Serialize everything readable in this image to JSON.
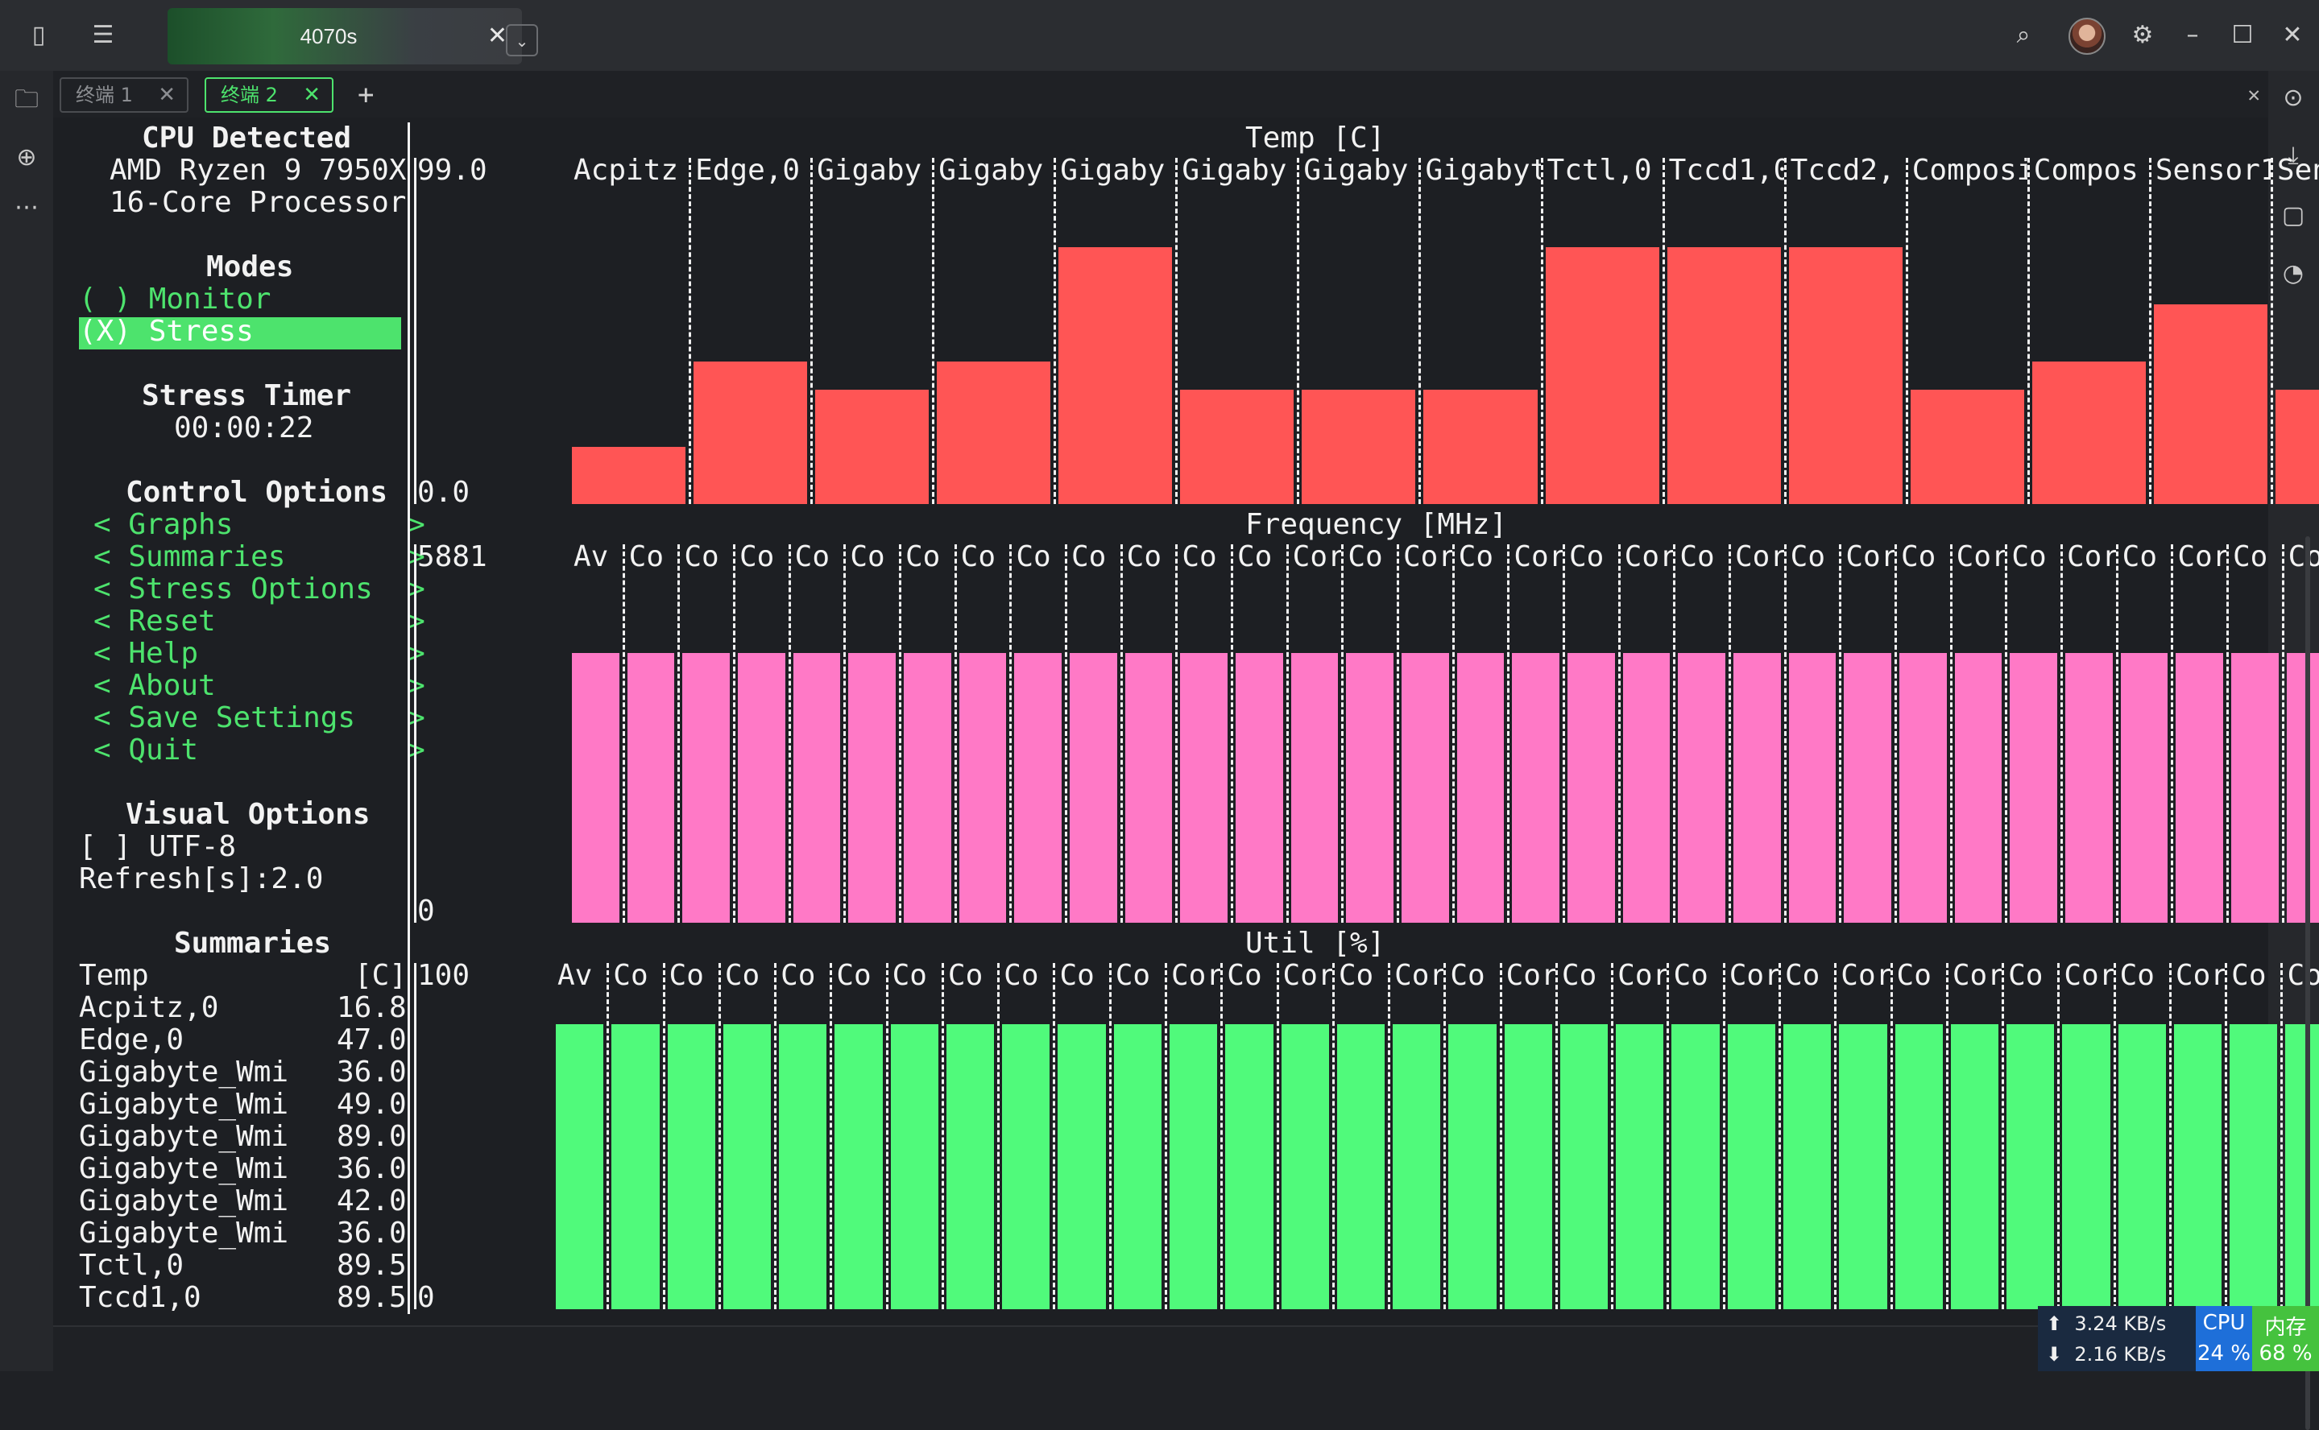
{
  "window": {
    "tab_title": "4070s",
    "tab_close": "✕",
    "dropdown": "⌄"
  },
  "terminal_tabs": [
    {
      "label": "终端 1",
      "close": "✕"
    },
    {
      "label": "终端 2",
      "close": "✕"
    }
  ],
  "add_tab": "+",
  "close_pane": "✕",
  "sidebar": {
    "cpu_title": "CPU Detected",
    "cpu_name1": "AMD Ryzen 9 7950X",
    "cpu_name2": "16-Core Processor",
    "modes_title": "Modes",
    "mode_monitor": "( ) Monitor",
    "mode_stress": "(X) Stress",
    "timer_title": "Stress Timer",
    "timer_value": "00:00:22",
    "control_title": "Control Options",
    "controls": [
      "< Graphs          >",
      "< Summaries       >",
      "< Stress Options  >",
      "< Reset           >",
      "< Help            >",
      "< About           >",
      "< Save Settings   >",
      "< Quit            >"
    ],
    "visual_title": "Visual Options",
    "utf8": "[ ] UTF-8",
    "refresh": "Refresh[s]:2.0",
    "summaries_title": "Summaries",
    "summary_header_name": "Temp",
    "summary_header_unit": "[C]",
    "summary_rows": [
      {
        "name": "Acpitz,0",
        "value": "16.8"
      },
      {
        "name": "Edge,0",
        "value": "47.0"
      },
      {
        "name": "Gigabyte_Wmi",
        "value": "36.0"
      },
      {
        "name": "Gigabyte_Wmi",
        "value": "49.0"
      },
      {
        "name": "Gigabyte_Wmi",
        "value": "89.0"
      },
      {
        "name": "Gigabyte_Wmi",
        "value": "36.0"
      },
      {
        "name": "Gigabyte_Wmi",
        "value": "42.0"
      },
      {
        "name": "Gigabyte_Wmi",
        "value": "36.0"
      },
      {
        "name": "Tctl,0",
        "value": "89.5"
      },
      {
        "name": "Tccd1,0",
        "value": "89.5"
      }
    ]
  },
  "chart_data": [
    {
      "type": "bar",
      "title": "Temp [C]",
      "ymax_label": "99.0",
      "ymin_label": "0.0",
      "categories": [
        "Acpitz",
        "Edge,0",
        "Gigaby",
        "Gigaby",
        "Gigaby",
        "Gigaby",
        "Gigaby",
        "Gigabyt",
        "Tctl,0",
        "Tccd1,0",
        "Tccd2,",
        "Composi",
        "Compos",
        "Sensor1",
        "Sensor"
      ],
      "values": [
        19.8,
        49.5,
        39.6,
        49.5,
        89.1,
        39.6,
        39.6,
        39.6,
        89.1,
        89.1,
        89.1,
        39.6,
        49.5,
        69.3,
        39.6
      ],
      "ylim": [
        0,
        99
      ]
    },
    {
      "type": "bar",
      "title": "Frequency [MHz]",
      "ymax_label": "5881",
      "ymin_label": "0",
      "categories": [
        "Av",
        "Co",
        "Co",
        "Co",
        "Co",
        "Co",
        "Co",
        "Co",
        "Co",
        "Co",
        "Co",
        "Co",
        "Co",
        "Cor",
        "Co",
        "Cor",
        "Co",
        "Cor",
        "Co",
        "Cor",
        "Co",
        "Cor",
        "Co",
        "Cor",
        "Co",
        "Cor",
        "Co",
        "Cor",
        "Co",
        "Cor",
        "Co",
        "Cor",
        "Co"
      ],
      "values": [
        5000,
        5000,
        5000,
        5000,
        5000,
        5000,
        5000,
        5000,
        5000,
        5000,
        5000,
        5000,
        5000,
        5000,
        5000,
        5000,
        5000,
        5000,
        5000,
        5000,
        5000,
        5000,
        5000,
        5000,
        5000,
        5000,
        5000,
        5000,
        5000,
        5000,
        5000,
        5000,
        5000
      ],
      "ylim": [
        0,
        5881
      ]
    },
    {
      "type": "bar",
      "title": "Util [%]",
      "ymax_label": "100",
      "ymin_label": "0",
      "categories": [
        "Av",
        "Co",
        "Co",
        "Co",
        "Co",
        "Co",
        "Co",
        "Co",
        "Co",
        "Co",
        "Co",
        "Cor",
        "Co",
        "Cor",
        "Co",
        "Cor",
        "Co",
        "Cor",
        "Co",
        "Cor",
        "Co",
        "Cor",
        "Co",
        "Cor",
        "Co",
        "Cor",
        "Co",
        "Cor",
        "Co",
        "Cor",
        "Co",
        "Cor",
        "Co"
      ],
      "values": [
        100,
        100,
        100,
        100,
        100,
        100,
        100,
        100,
        100,
        100,
        100,
        100,
        100,
        100,
        100,
        100,
        100,
        100,
        100,
        100,
        100,
        100,
        100,
        100,
        100,
        100,
        100,
        100,
        100,
        100,
        100,
        100,
        100
      ],
      "ylim": [
        0,
        100
      ]
    }
  ],
  "status": {
    "up": "⬆  3.24 KB/s",
    "down": "⬇  2.16 KB/s",
    "cpu_label": "CPU",
    "cpu_value": "24 %",
    "mem_label": "内存",
    "mem_value": "68 %"
  },
  "colors": {
    "accent": "#4de36d",
    "temp_bar": "#ff5555",
    "freq_bar": "#ff79c6",
    "util_bar": "#50fa7b"
  },
  "icons": [
    "book-icon",
    "list-icon",
    "folder-icon",
    "target-icon",
    "more-icon",
    "search-icon",
    "settings-icon",
    "minimize-icon",
    "maximize-icon",
    "close-icon",
    "upload-icon",
    "download-icon",
    "bookmark-icon",
    "gauge-icon"
  ]
}
